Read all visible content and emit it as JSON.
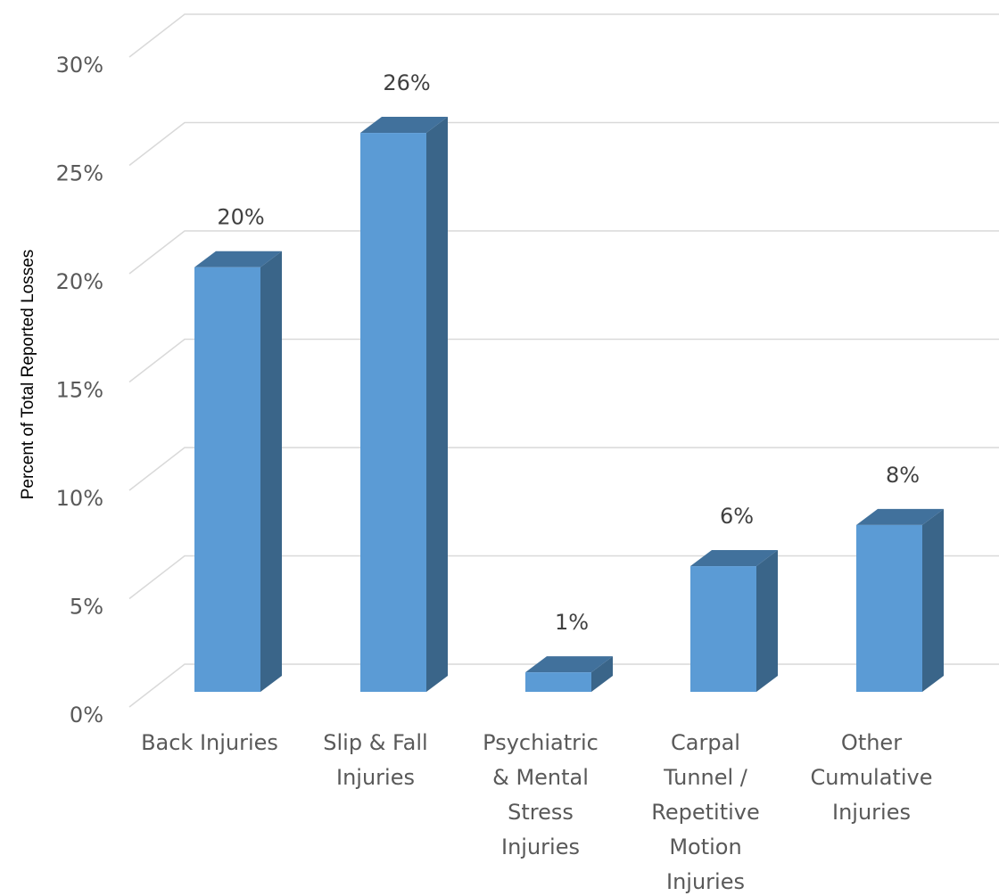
{
  "chart_data": {
    "type": "bar",
    "style": "3d-column",
    "ylabel": "Percent of Total Reported Losses",
    "xlabel": "",
    "ylim": [
      0,
      30
    ],
    "yticks": [
      "0%",
      "5%",
      "10%",
      "15%",
      "20%",
      "25%",
      "30%"
    ],
    "grid": true,
    "categories": [
      [
        "Back Injuries"
      ],
      [
        "Slip & Fall",
        "Injuries"
      ],
      [
        "Psychiatric",
        "& Mental",
        "Stress",
        "Injuries"
      ],
      [
        "Carpal",
        "Tunnel /",
        "Repetitive",
        "Motion",
        "Injuries"
      ],
      [
        "Other",
        "Cumulative",
        "Injuries"
      ]
    ],
    "values": [
      19.6,
      25.8,
      0.9,
      5.8,
      7.7
    ],
    "data_labels": [
      "20%",
      "26%",
      "1%",
      "6%",
      "8%"
    ],
    "colors": {
      "front": "#5b9bd5",
      "side": "#3a6589",
      "top": "#41719c"
    }
  }
}
